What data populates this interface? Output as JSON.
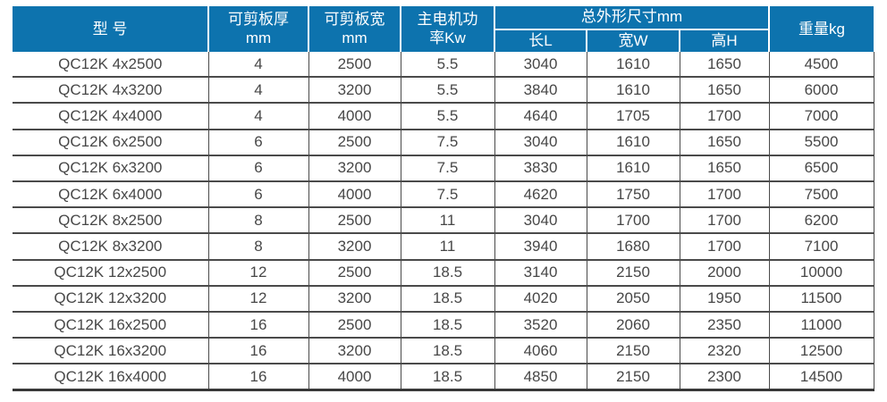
{
  "colors": {
    "header_bg": "#0d73ae",
    "header_text": "#ffffff",
    "body_text": "#474747",
    "grid_line": "#4a4a4a"
  },
  "table": {
    "header": {
      "model": "型 号",
      "thickness_lines": [
        "可剪板厚",
        "mm"
      ],
      "width_lines": [
        "可剪板宽",
        "mm"
      ],
      "power_lines": [
        "主电机功",
        "率Kw"
      ],
      "dimensions_group": "总外形尺寸mm",
      "dimensions_sub": [
        "长L",
        "宽W",
        "高H"
      ],
      "weight": "重量kg"
    },
    "column_keys": [
      "model",
      "shearable-thickness-mm",
      "shearable-width-mm",
      "motor-power-kw",
      "length-l",
      "width-w",
      "height-h",
      "weight-kg"
    ],
    "rows": [
      [
        "QC12K 4x2500",
        "4",
        "2500",
        "5.5",
        "3040",
        "1610",
        "1650",
        "4500"
      ],
      [
        "QC12K 4x3200",
        "4",
        "3200",
        "5.5",
        "3840",
        "1610",
        "1650",
        "6000"
      ],
      [
        "QC12K 4x4000",
        "4",
        "4000",
        "5.5",
        "4640",
        "1705",
        "1700",
        "7000"
      ],
      [
        "QC12K 6x2500",
        "6",
        "2500",
        "7.5",
        "3040",
        "1610",
        "1650",
        "5500"
      ],
      [
        "QC12K 6x3200",
        "6",
        "3200",
        "7.5",
        "3830",
        "1610",
        "1650",
        "6500"
      ],
      [
        "QC12K 6x4000",
        "6",
        "4000",
        "7.5",
        "4620",
        "1750",
        "1700",
        "7500"
      ],
      [
        "QC12K 8x2500",
        "8",
        "2500",
        "11",
        "3040",
        "1700",
        "1700",
        "6200"
      ],
      [
        "QC12K 8x3200",
        "8",
        "3200",
        "11",
        "3940",
        "1680",
        "1700",
        "7100"
      ],
      [
        "QC12K 12x2500",
        "12",
        "2500",
        "18.5",
        "3140",
        "2150",
        "2000",
        "10000"
      ],
      [
        "QC12K 12x3200",
        "12",
        "3200",
        "18.5",
        "4020",
        "2050",
        "1950",
        "11500"
      ],
      [
        "QC12K 16x2500",
        "16",
        "2500",
        "18.5",
        "3520",
        "2060",
        "2350",
        "11000"
      ],
      [
        "QC12K 16x3200",
        "16",
        "3200",
        "18.5",
        "4060",
        "2150",
        "2320",
        "12500"
      ],
      [
        "QC12K 16x4000",
        "16",
        "4000",
        "18.5",
        "4850",
        "2150",
        "2300",
        "14500"
      ]
    ]
  }
}
